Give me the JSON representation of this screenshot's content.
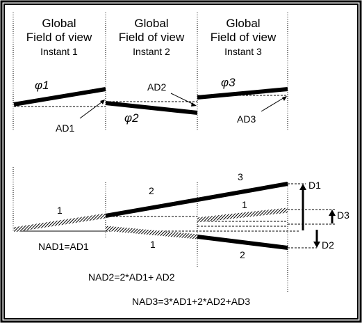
{
  "panels": [
    {
      "title_line1": "Global",
      "title_line2": "Field of view",
      "instant": "Instant 1",
      "phi": "φ1",
      "ad": "AD1"
    },
    {
      "title_line1": "Global",
      "title_line2": "Field of view",
      "instant": "Instant 2",
      "phi": "φ2",
      "ad": "AD2"
    },
    {
      "title_line1": "Global",
      "title_line2": "Field of view",
      "instant": "Instant 3",
      "phi": "φ3",
      "ad": "AD3"
    }
  ],
  "bottom": {
    "segment_labels": {
      "thick_1": "1",
      "thick_2": "2",
      "thick_3": "3",
      "upper_1": "1",
      "lower_1": "1",
      "lower_2": "2"
    },
    "deviations": {
      "d1": "D1",
      "d2": "D2",
      "d3": "D3"
    },
    "formulas": {
      "nad1": "NAD1=AD1",
      "nad2": "NAD2=2*AD1+ AD2",
      "nad3": "NAD3=3*AD1+2*AD2+AD3"
    }
  }
}
